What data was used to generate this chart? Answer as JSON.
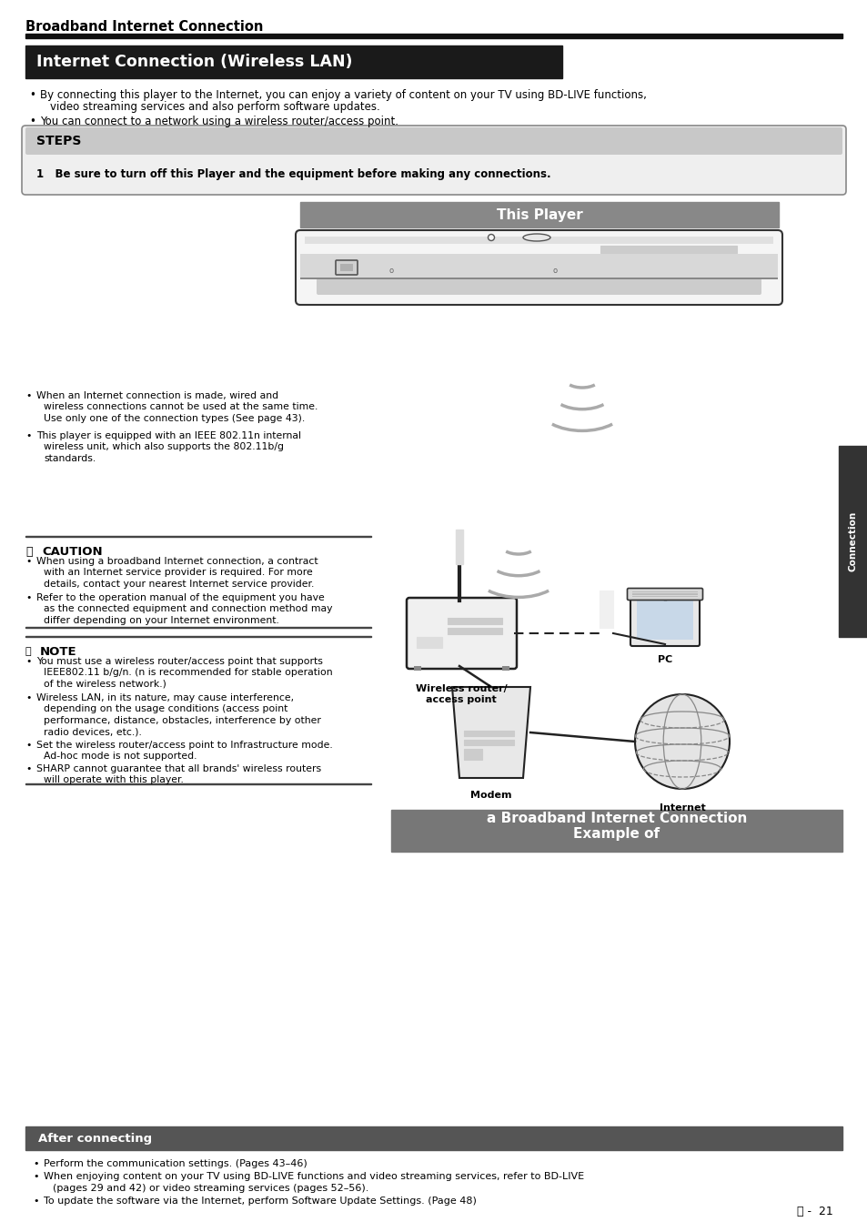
{
  "page_bg": "#ffffff",
  "top_header": "Broadband Internet Connection",
  "section_title": "Internet Connection (Wireless LAN)",
  "section_title_bg": "#1a1a1a",
  "section_title_color": "#ffffff",
  "bullet1_a": "By connecting this player to the Internet, you can enjoy a variety of content on your TV using BD-LIVE functions,",
  "bullet1_b": "video streaming services and also perform software updates.",
  "bullet2": "You can connect to a network using a wireless router/access point.",
  "steps_title": "STEPS",
  "step1": "1   Be sure to turn off this Player and the equipment before making any connections.",
  "this_player_label": "This Player",
  "this_player_bg": "#888888",
  "note_bullet1a": "When an Internet connection is made, wired and",
  "note_bullet1b": "wireless connections cannot be used at the same time.",
  "note_bullet1c": "Use only one of the connection types (See page 43).",
  "note_bullet2a": "This player is equipped with an IEEE 802.11n internal",
  "note_bullet2b": "wireless unit, which also supports the 802.11b/g",
  "note_bullet2c": "standards.",
  "caution_title": "CAUTION",
  "caution1a": "When using a broadband Internet connection, a contract",
  "caution1b": "with an Internet service provider is required. For more",
  "caution1c": "details, contact your nearest Internet service provider.",
  "caution2a": "Refer to the operation manual of the equipment you have",
  "caution2b": "as the connected equipment and connection method may",
  "caution2c": "differ depending on your Internet environment.",
  "note_title": "NOTE",
  "note1a": "You must use a wireless router/access point that supports",
  "note1b": "IEEE802.11 b/g/n. (n is recommended for stable operation",
  "note1c": "of the wireless network.)",
  "note2a": "Wireless LAN, in its nature, may cause interference,",
  "note2b": "depending on the usage conditions (access point",
  "note2c": "performance, distance, obstacles, interference by other",
  "note2d": "radio devices, etc.).",
  "note3a": "Set the wireless router/access point to Infrastructure mode.",
  "note3b": "Ad-hoc mode is not supported.",
  "note4a": "SHARP cannot guarantee that all brands' wireless routers",
  "note4b": "will operate with this player.",
  "diagram_caption1": "Wireless router/\naccess point",
  "diagram_caption2": "PC",
  "diagram_caption3": "Modem",
  "diagram_caption4": "Internet",
  "example_caption_line1": "Example of",
  "example_caption_line2": "a Broadband Internet Connection",
  "example_caption_bg": "#777777",
  "example_caption_color": "#ffffff",
  "after_title": "After connecting",
  "after_title_bg": "#555555",
  "after_title_color": "#ffffff",
  "after1": "Perform the communication settings. (Pages 43–46)",
  "after2a": "When enjoying content on your TV using BD-LIVE functions and video streaming services, refer to BD-LIVE",
  "after2b": "(pages 29 and 42) or video streaming services (pages 52–56).",
  "after3": "To update the software via the Internet, perform Software Update Settings. (Page 48)",
  "page_number": "21",
  "connection_tab_text": "Connection",
  "tab_bg": "#333333"
}
